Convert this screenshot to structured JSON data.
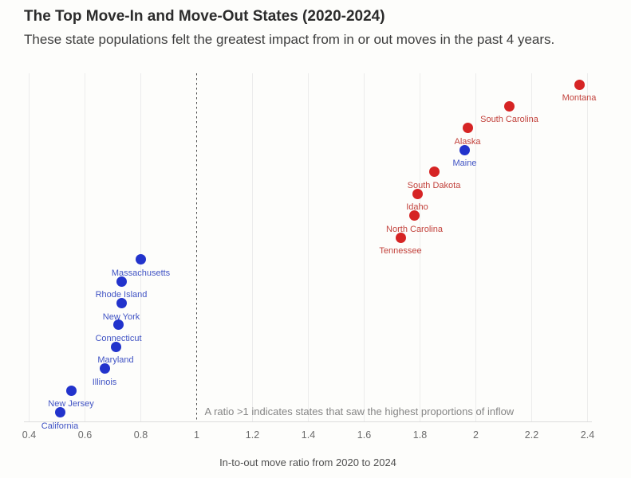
{
  "header": {
    "title": "The Top Move-In and Move-Out States (2020-2024)",
    "subtitle": "These state populations felt the greatest impact from in or out moves in the past 4 years."
  },
  "chart_data": {
    "type": "scatter",
    "title": "The Top Move-In and Move-Out States (2020-2024)",
    "subtitle": "These state populations felt the greatest impact from in or out moves in the past 4 years.",
    "xlabel": "In-to-out move ratio from 2020 to 2024",
    "ylabel": "",
    "xlim": [
      0.38,
      2.42
    ],
    "x_ticks": [
      0.4,
      0.6,
      0.8,
      1,
      1.2,
      1.4,
      1.6,
      1.8,
      2,
      2.2,
      2.4
    ],
    "x_tick_labels": [
      "0.4",
      "0.6",
      "0.8",
      "1",
      "1.2",
      "1.4",
      "1.6",
      "1.8",
      "2",
      "2.2",
      "2.4"
    ],
    "grid": "vertical-only",
    "legend": "none",
    "reference_line": {
      "x": 1,
      "style": "dashed"
    },
    "annotation": "A ratio >1 indicates states that saw the highest proportions of inflow",
    "point_colors": {
      "red": "#d62424",
      "blue": "#2233cc"
    },
    "label_colors": {
      "red": "#c2423c",
      "blue": "#4053c4"
    },
    "points": [
      {
        "state": "Montana",
        "ratio": 2.37,
        "group": "red"
      },
      {
        "state": "South Carolina",
        "ratio": 2.12,
        "group": "red"
      },
      {
        "state": "Alaska",
        "ratio": 1.97,
        "group": "red"
      },
      {
        "state": "Maine",
        "ratio": 1.96,
        "group": "blue"
      },
      {
        "state": "South Dakota",
        "ratio": 1.85,
        "group": "red"
      },
      {
        "state": "Idaho",
        "ratio": 1.79,
        "group": "red"
      },
      {
        "state": "North Carolina",
        "ratio": 1.78,
        "group": "red"
      },
      {
        "state": "Tennessee",
        "ratio": 1.73,
        "group": "red"
      },
      {
        "state": "Massachusetts",
        "ratio": 0.8,
        "group": "blue"
      },
      {
        "state": "Rhode Island",
        "ratio": 0.73,
        "group": "blue"
      },
      {
        "state": "New York",
        "ratio": 0.73,
        "group": "blue"
      },
      {
        "state": "Connecticut",
        "ratio": 0.72,
        "group": "blue"
      },
      {
        "state": "Maryland",
        "ratio": 0.71,
        "group": "blue"
      },
      {
        "state": "Illinois",
        "ratio": 0.67,
        "group": "blue"
      },
      {
        "state": "New Jersey",
        "ratio": 0.55,
        "group": "blue"
      },
      {
        "state": "California",
        "ratio": 0.51,
        "group": "blue"
      }
    ]
  }
}
